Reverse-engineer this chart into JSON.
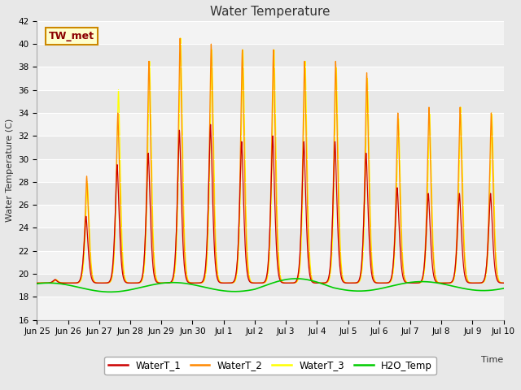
{
  "title": "Water Temperature",
  "ylabel": "Water Temperature (C)",
  "xlabel": "Time",
  "ylim": [
    16,
    42
  ],
  "yticks": [
    16,
    18,
    20,
    22,
    24,
    26,
    28,
    30,
    32,
    34,
    36,
    38,
    40,
    42
  ],
  "annotation_label": "TW_met",
  "bg_color": "#e8e8e8",
  "plot_bg_color": "#e8e8e8",
  "line_colors": {
    "WaterT_1": "#cc0000",
    "WaterT_2": "#ff8800",
    "WaterT_3": "#ffff00",
    "H2O_Temp": "#00cc00"
  },
  "legend_labels": [
    "WaterT_1",
    "WaterT_2",
    "WaterT_3",
    "H2O_Temp"
  ],
  "x_tick_labels": [
    "Jun 25",
    "Jun 26",
    "Jun 27",
    "Jun 28",
    "Jun 29",
    "Jun 30",
    "Jul 1",
    "Jul 2",
    "Jul 3",
    "Jul 4",
    "Jul 5",
    "Jul 6",
    "Jul 7",
    "Jul 8",
    "Jul 9",
    "Jul 10"
  ],
  "x_tick_positions": [
    0,
    1,
    2,
    3,
    4,
    5,
    6,
    7,
    8,
    9,
    10,
    11,
    12,
    13,
    14,
    15
  ]
}
